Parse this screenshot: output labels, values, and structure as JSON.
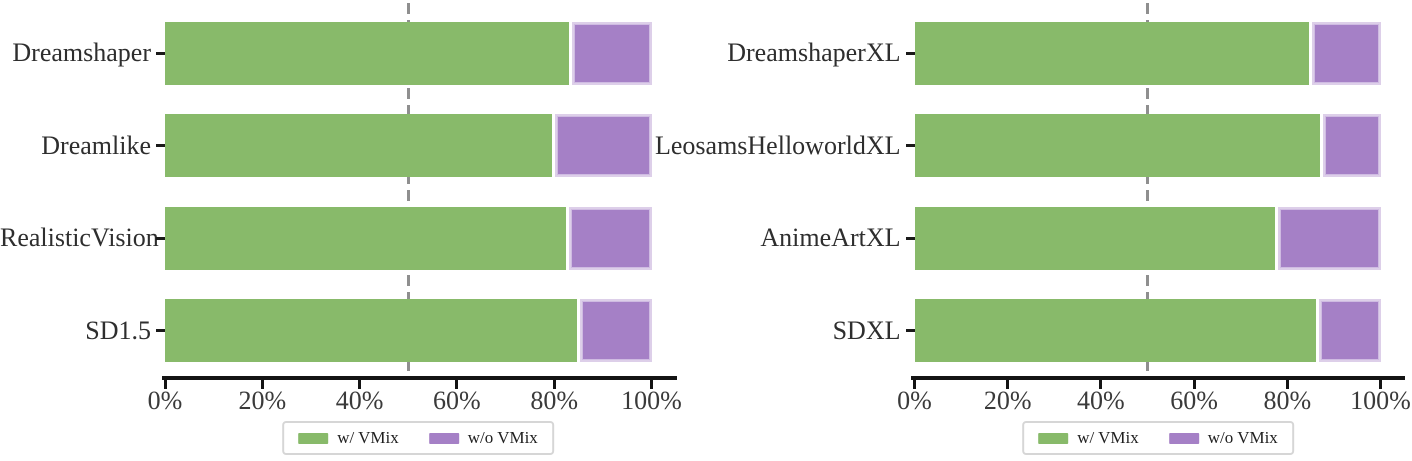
{
  "page": {
    "background": "#ffffff"
  },
  "colors": {
    "with_vmix_green": "#88ba6a",
    "without_vmix_purple": "#a580c6",
    "purple_edge": "#cfbbe2",
    "reference_line_gray": "#8f8f8f",
    "axis_black": "#141414",
    "tick_label_gray": "#3a3a3a"
  },
  "legend": {
    "items": [
      {
        "label": "w/ VMix",
        "color": "#88ba6a"
      },
      {
        "label": "w/o VMix",
        "color": "#a580c6"
      }
    ]
  },
  "chart_data": [
    {
      "type": "bar",
      "orientation": "horizontal",
      "stacked": true,
      "title": "",
      "xlabel": "",
      "ylabel": "",
      "categories": [
        "Dreamshaper",
        "Dreamlike",
        "RealisticVision",
        "SD1.5"
      ],
      "series": [
        {
          "name": "w/ VMix",
          "color": "#88ba6a",
          "values": [
            83.1,
            79.5,
            82.4,
            84.6
          ]
        },
        {
          "name": "w/o VMix",
          "color": "#a580c6",
          "values": [
            16.9,
            20.5,
            17.6,
            15.4
          ]
        }
      ],
      "xlim": [
        0,
        100
      ],
      "x_tick_labels": [
        "0%",
        "20%",
        "40%",
        "60%",
        "80%",
        "100%"
      ],
      "x_tick_values": [
        0,
        20,
        40,
        60,
        80,
        100
      ],
      "reference_line_x": 50,
      "grid": false,
      "legend_position": "bottom-center"
    },
    {
      "type": "bar",
      "orientation": "horizontal",
      "stacked": true,
      "title": "",
      "xlabel": "",
      "ylabel": "",
      "categories": [
        "DreamshaperXL",
        "LeosamsHelloworldXL",
        "AnimeArtXL",
        "SDXL"
      ],
      "series": [
        {
          "name": "w/ VMix",
          "color": "#88ba6a",
          "values": [
            84.7,
            87.0,
            77.3,
            86.1
          ]
        },
        {
          "name": "w/o VMix",
          "color": "#a580c6",
          "values": [
            15.3,
            13.0,
            22.7,
            13.9
          ]
        }
      ],
      "xlim": [
        0,
        100
      ],
      "x_tick_labels": [
        "0%",
        "20%",
        "40%",
        "60%",
        "80%",
        "100%"
      ],
      "x_tick_values": [
        0,
        20,
        40,
        60,
        80,
        100
      ],
      "reference_line_x": 50,
      "grid": false,
      "legend_position": "bottom-center"
    }
  ]
}
